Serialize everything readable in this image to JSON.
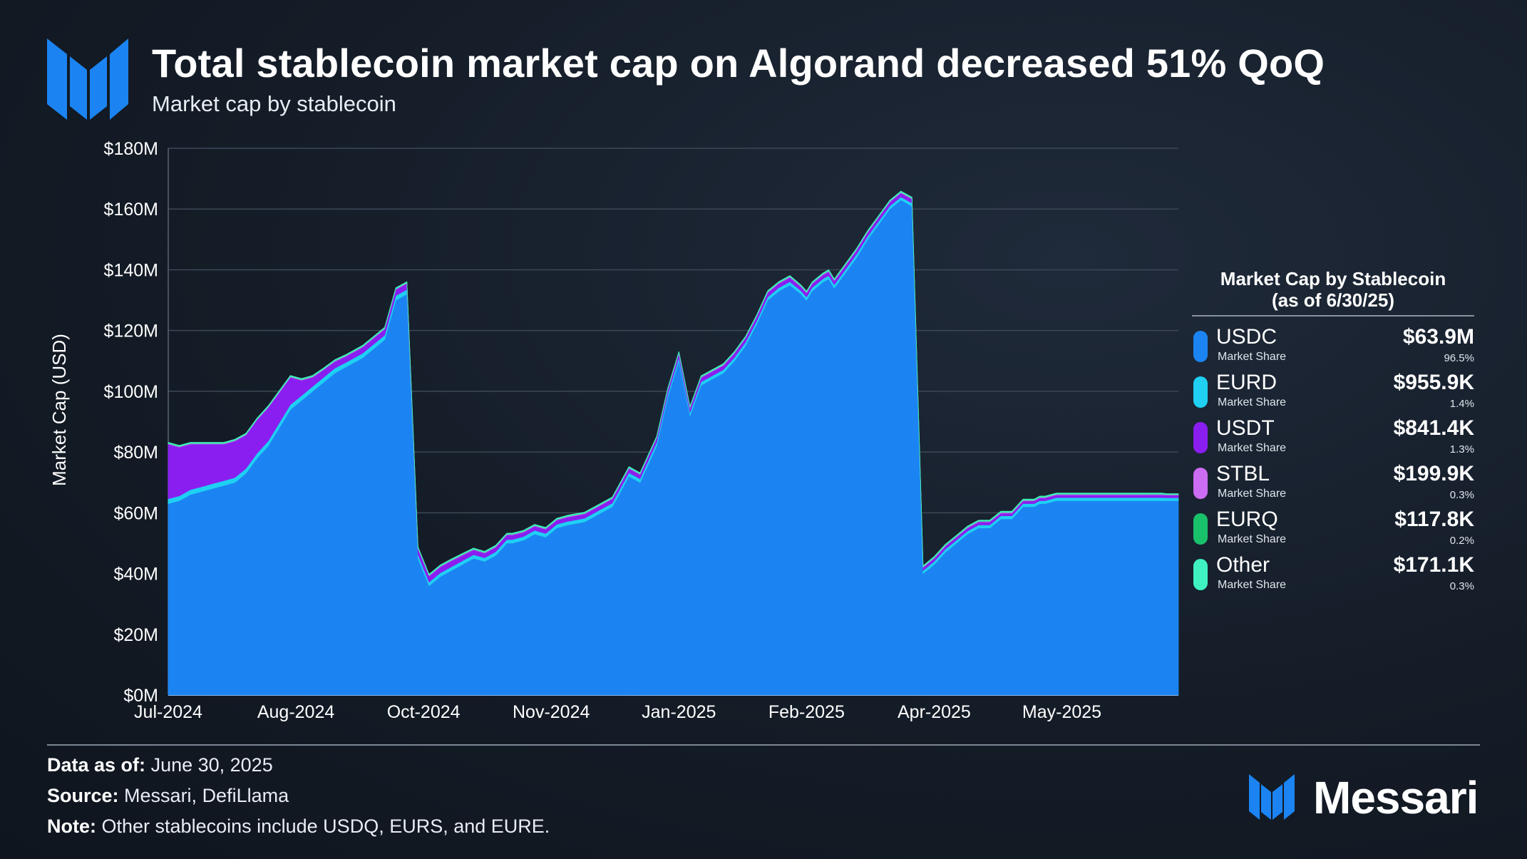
{
  "header": {
    "title": "Total stablecoin market cap on Algorand decreased 51% QoQ",
    "subtitle": "Market cap by stablecoin"
  },
  "legend": {
    "title_line1": "Market Cap by Stablecoin",
    "title_line2": "(as of 6/30/25)",
    "items": [
      {
        "name": "USDC",
        "sub": "Market Share",
        "value": "$63.9M",
        "share": "96.5%",
        "color": "#1b84f2"
      },
      {
        "name": "EURD",
        "sub": "Market Share",
        "value": "$955.9K",
        "share": "1.4%",
        "color": "#1fd0f2"
      },
      {
        "name": "USDT",
        "sub": "Market Share",
        "value": "$841.4K",
        "share": "1.3%",
        "color": "#8a1ef0"
      },
      {
        "name": "STBL",
        "sub": "Market Share",
        "value": "$199.9K",
        "share": "0.3%",
        "color": "#cc6cf2"
      },
      {
        "name": "EURQ",
        "sub": "Market Share",
        "value": "$117.8K",
        "share": "0.2%",
        "color": "#19c16b"
      },
      {
        "name": "Other",
        "sub": "Market Share",
        "value": "$171.1K",
        "share": "0.3%",
        "color": "#3ff2c0"
      }
    ]
  },
  "footer": {
    "data_label": "Data as of:",
    "data_value": "June 30, 2025",
    "source_label": "Source:",
    "source_value": "Messari, DefiLlama",
    "note_label": "Note:",
    "note_value": "Other stablecoins include USDQ, EURS, and EURE."
  },
  "brand": {
    "name": "Messari"
  },
  "chart_data": {
    "type": "area",
    "stacked": true,
    "ylabel": "Market Cap (USD)",
    "ylim": [
      0,
      180
    ],
    "yticks": [
      0,
      20,
      40,
      60,
      80,
      100,
      120,
      140,
      160,
      180
    ],
    "ytick_labels": [
      "$0M",
      "$20M",
      "$40M",
      "$60M",
      "$80M",
      "$100M",
      "$120M",
      "$140M",
      "$160M",
      "$180M"
    ],
    "xlim": [
      0,
      364
    ],
    "xticks": [
      0,
      46,
      92,
      138,
      184,
      230,
      276,
      322
    ],
    "xtick_labels": [
      "Jul-2024",
      "Aug-2024",
      "Oct-2024",
      "Nov-2024",
      "Jan-2025",
      "Feb-2025",
      "Apr-2025",
      "May-2025"
    ],
    "grid": true,
    "x": [
      0,
      4,
      8,
      12,
      16,
      20,
      24,
      28,
      32,
      36,
      40,
      44,
      48,
      52,
      56,
      60,
      64,
      66,
      70,
      74,
      78,
      82,
      86,
      90,
      94,
      98,
      102,
      106,
      110,
      114,
      118,
      120,
      122,
      124,
      128,
      132,
      136,
      140,
      144,
      150,
      156,
      160,
      166,
      170,
      176,
      180,
      184,
      188,
      192,
      196,
      200,
      204,
      208,
      212,
      216,
      220,
      224,
      228,
      230,
      232,
      236,
      238,
      240,
      244,
      248,
      252,
      256,
      260,
      264,
      268,
      272,
      276,
      280,
      284,
      288,
      292,
      296,
      300,
      304,
      308,
      312,
      314,
      316,
      320,
      324,
      326,
      328,
      330,
      332,
      334,
      336,
      340,
      344,
      348,
      352,
      356,
      358,
      360,
      364
    ],
    "series": [
      {
        "name": "USDC",
        "color": "#1b84f2",
        "values": [
          63,
          64,
          66,
          67,
          68,
          69,
          70,
          73,
          78,
          82,
          88,
          94,
          97,
          100,
          103,
          106,
          108,
          109,
          111,
          114,
          117,
          130,
          132,
          45,
          36,
          39,
          41,
          43,
          45,
          44,
          46,
          48,
          50,
          50,
          51,
          53,
          52,
          55,
          56,
          57,
          60,
          62,
          72,
          70,
          82,
          98,
          110,
          92,
          102,
          104,
          106,
          110,
          115,
          122,
          130,
          133,
          135,
          132,
          130,
          133,
          136,
          137,
          134,
          139,
          144,
          150,
          155,
          160,
          163,
          161,
          40,
          43,
          47,
          50,
          53,
          55,
          55,
          58,
          58,
          62,
          62,
          63,
          63,
          64,
          64,
          64,
          64,
          64,
          64,
          64,
          64,
          64,
          64,
          64,
          64,
          64,
          64,
          64,
          64
        ]
      },
      {
        "name": "EURD",
        "color": "#1fd0f2",
        "values": [
          1.6,
          1.6,
          1.6,
          1.6,
          1.6,
          1.6,
          1.6,
          1.6,
          1.6,
          1.6,
          1.6,
          1.6,
          1.6,
          1.6,
          1.6,
          1.6,
          1.5,
          1.5,
          1.5,
          1.5,
          1.5,
          1.5,
          1.5,
          1.2,
          1.2,
          1.2,
          1.2,
          1.2,
          1.2,
          1.2,
          1.2,
          1.2,
          1.2,
          1.2,
          1.2,
          1.2,
          1.2,
          1.2,
          1.2,
          1.2,
          1.2,
          1.2,
          1.2,
          1.2,
          1.2,
          1.1,
          1.1,
          1.1,
          1.1,
          1.1,
          1.1,
          1.1,
          1.1,
          1.1,
          1.1,
          1.1,
          1.1,
          1.1,
          1.1,
          1.1,
          1.1,
          1.1,
          1.1,
          1.1,
          1.1,
          1.0,
          1.0,
          1.0,
          1.0,
          1.0,
          1.0,
          1.0,
          1.0,
          1.0,
          1.0,
          1.0,
          1.0,
          1.0,
          1.0,
          1.0,
          1.0,
          1.0,
          1.0,
          1.0,
          1.0,
          1.0,
          1.0,
          1.0,
          1.0,
          1.0,
          1.0,
          1.0,
          1.0,
          1.0,
          1.0,
          1.0,
          1.0,
          0.96,
          0.96
        ]
      },
      {
        "name": "USDT",
        "color": "#8a1ef0",
        "values": [
          18,
          16,
          15,
          14,
          13,
          12,
          12,
          11,
          11,
          11,
          10,
          9,
          5,
          3,
          2.5,
          2.2,
          2.0,
          2.0,
          2.0,
          2.0,
          2.0,
          2.0,
          2.0,
          2.0,
          2.0,
          2.0,
          2.0,
          1.8,
          1.6,
          1.5,
          1.5,
          1.5,
          1.5,
          1.5,
          1.4,
          1.4,
          1.4,
          1.4,
          1.4,
          1.4,
          1.4,
          1.4,
          1.4,
          1.4,
          1.4,
          1.4,
          1.4,
          1.4,
          1.4,
          1.4,
          1.4,
          1.4,
          1.4,
          1.4,
          1.4,
          1.4,
          1.4,
          1.3,
          1.3,
          1.3,
          1.3,
          1.3,
          1.3,
          1.3,
          1.3,
          1.3,
          1.3,
          1.3,
          1.3,
          1.3,
          1.0,
          1.0,
          1.0,
          1.0,
          1.0,
          1.0,
          1.0,
          0.9,
          0.9,
          0.9,
          0.9,
          0.9,
          0.9,
          0.9,
          0.9,
          0.9,
          0.9,
          0.9,
          0.9,
          0.9,
          0.9,
          0.9,
          0.9,
          0.9,
          0.9,
          0.9,
          0.9,
          0.84,
          0.84
        ]
      },
      {
        "name": "STBL",
        "color": "#cc6cf2",
        "values": [
          0.2,
          0.2,
          0.2,
          0.2,
          0.2,
          0.2,
          0.2,
          0.2,
          0.2,
          0.2,
          0.2,
          0.2,
          0.2,
          0.2,
          0.2,
          0.2,
          0.2,
          0.2,
          0.2,
          0.2,
          0.2,
          0.2,
          0.2,
          0.2,
          0.2,
          0.2,
          0.2,
          0.2,
          0.2,
          0.2,
          0.2,
          0.2,
          0.2,
          0.2,
          0.2,
          0.2,
          0.2,
          0.2,
          0.2,
          0.2,
          0.2,
          0.2,
          0.2,
          0.2,
          0.2,
          0.2,
          0.2,
          0.2,
          0.2,
          0.2,
          0.2,
          0.2,
          0.2,
          0.2,
          0.2,
          0.2,
          0.2,
          0.2,
          0.2,
          0.2,
          0.2,
          0.2,
          0.2,
          0.2,
          0.2,
          0.2,
          0.2,
          0.2,
          0.2,
          0.2,
          0.2,
          0.2,
          0.2,
          0.2,
          0.2,
          0.2,
          0.2,
          0.2,
          0.2,
          0.2,
          0.2,
          0.2,
          0.2,
          0.2,
          0.2,
          0.2,
          0.2,
          0.2,
          0.2,
          0.2,
          0.2,
          0.2,
          0.2,
          0.2,
          0.2,
          0.2,
          0.2,
          0.2,
          0.2
        ]
      },
      {
        "name": "EURQ",
        "color": "#19c16b",
        "values": [
          0.1,
          0.1,
          0.1,
          0.1,
          0.1,
          0.1,
          0.1,
          0.1,
          0.1,
          0.1,
          0.1,
          0.1,
          0.1,
          0.1,
          0.1,
          0.1,
          0.1,
          0.1,
          0.1,
          0.1,
          0.1,
          0.1,
          0.1,
          0.1,
          0.1,
          0.1,
          0.1,
          0.1,
          0.1,
          0.1,
          0.1,
          0.1,
          0.1,
          0.1,
          0.1,
          0.1,
          0.1,
          0.1,
          0.1,
          0.1,
          0.1,
          0.1,
          0.1,
          0.1,
          0.1,
          0.1,
          0.1,
          0.1,
          0.1,
          0.1,
          0.1,
          0.1,
          0.1,
          0.1,
          0.1,
          0.1,
          0.1,
          0.1,
          0.1,
          0.1,
          0.1,
          0.1,
          0.1,
          0.1,
          0.1,
          0.1,
          0.1,
          0.1,
          0.1,
          0.1,
          0.1,
          0.1,
          0.1,
          0.1,
          0.1,
          0.1,
          0.1,
          0.1,
          0.1,
          0.1,
          0.1,
          0.1,
          0.1,
          0.1,
          0.1,
          0.1,
          0.1,
          0.1,
          0.1,
          0.1,
          0.1,
          0.1,
          0.1,
          0.1,
          0.1,
          0.1,
          0.1,
          0.12,
          0.12
        ]
      },
      {
        "name": "Other",
        "color": "#3ff2c0",
        "values": [
          0.3,
          0.3,
          0.3,
          0.3,
          0.3,
          0.3,
          0.3,
          0.3,
          0.3,
          0.3,
          0.3,
          0.3,
          0.3,
          0.3,
          0.3,
          0.3,
          0.3,
          0.3,
          0.3,
          0.3,
          0.3,
          0.3,
          0.3,
          0.3,
          0.3,
          0.3,
          0.3,
          0.3,
          0.3,
          0.3,
          0.3,
          0.3,
          0.3,
          0.3,
          0.3,
          0.3,
          0.3,
          0.3,
          0.3,
          0.3,
          0.3,
          0.3,
          0.3,
          0.3,
          0.3,
          0.3,
          0.3,
          0.3,
          0.3,
          0.3,
          0.3,
          0.3,
          0.3,
          0.3,
          0.3,
          0.3,
          0.3,
          0.3,
          0.3,
          0.3,
          0.3,
          0.3,
          0.3,
          0.3,
          0.3,
          0.3,
          0.3,
          0.3,
          0.3,
          0.3,
          0.3,
          0.3,
          0.3,
          0.3,
          0.3,
          0.3,
          0.3,
          0.3,
          0.3,
          0.3,
          0.3,
          0.3,
          0.3,
          0.3,
          0.3,
          0.3,
          0.3,
          0.3,
          0.3,
          0.3,
          0.3,
          0.3,
          0.3,
          0.3,
          0.3,
          0.3,
          0.3,
          0.17,
          0.17
        ]
      }
    ]
  }
}
